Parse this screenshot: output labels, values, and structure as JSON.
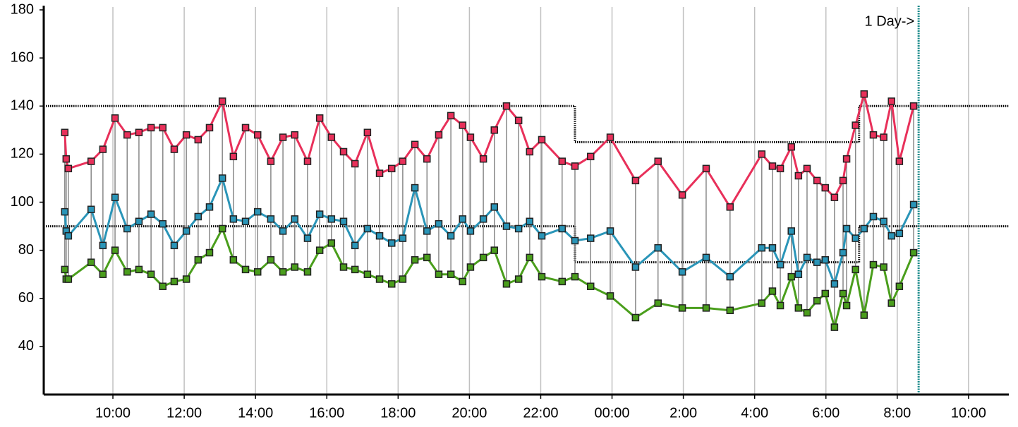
{
  "chart_data": {
    "type": "line",
    "x": [
      8.65,
      8.69,
      8.75,
      9.39,
      9.72,
      10.06,
      10.4,
      10.73,
      11.07,
      11.4,
      11.72,
      12.06,
      12.39,
      12.71,
      13.07,
      13.38,
      13.72,
      14.06,
      14.43,
      14.77,
      15.1,
      15.46,
      15.8,
      16.13,
      16.47,
      16.79,
      17.14,
      17.48,
      17.82,
      18.13,
      18.47,
      18.81,
      19.14,
      19.48,
      19.81,
      20.03,
      20.39,
      20.7,
      21.04,
      21.38,
      21.69,
      22.03,
      22.6,
      22.96,
      23.4,
      23.95,
      24.66,
      25.29,
      25.97,
      26.64,
      27.31,
      28.2,
      28.5,
      28.72,
      29.03,
      29.23,
      29.47,
      29.75,
      29.98,
      30.24,
      30.48,
      30.58,
      30.83,
      31.07,
      31.33,
      31.62,
      31.84,
      32.06,
      32.46
    ],
    "series": [
      {
        "color": "#e8305a",
        "values": [
          129,
          118,
          114,
          117,
          122,
          135,
          128,
          129,
          131,
          131,
          122,
          128,
          126,
          131,
          142,
          119,
          131,
          128,
          117,
          127,
          128,
          117,
          135,
          127,
          121,
          116,
          129,
          112,
          114,
          117,
          124,
          118,
          128,
          136,
          132,
          127,
          118,
          130,
          140,
          134,
          121,
          126,
          117,
          115,
          119,
          127,
          109,
          117,
          103,
          114,
          98,
          120,
          115,
          114,
          123,
          111,
          114,
          109,
          106,
          102,
          109,
          118,
          132,
          145,
          128,
          127,
          142,
          117,
          140
        ]
      },
      {
        "color": "#2a95b8",
        "values": [
          96,
          88,
          86,
          97,
          82,
          102,
          89,
          92,
          95,
          91,
          82,
          88,
          94,
          98,
          110,
          93,
          92,
          96,
          93,
          88,
          93,
          85,
          95,
          93,
          92,
          82,
          89,
          86,
          83,
          85,
          106,
          88,
          91,
          86,
          93,
          88,
          93,
          98,
          90,
          89,
          92,
          86,
          89,
          84,
          85,
          88,
          73,
          81,
          71,
          77,
          69,
          81,
          81,
          74,
          88,
          70,
          77,
          75,
          76,
          66,
          79,
          89,
          85,
          89,
          94,
          92,
          86,
          87,
          99
        ]
      },
      {
        "color": "#4a9e1c",
        "values": [
          72,
          68,
          68,
          75,
          70,
          80,
          71,
          72,
          70,
          65,
          67,
          68,
          76,
          79,
          89,
          76,
          72,
          71,
          76,
          71,
          73,
          71,
          80,
          83,
          73,
          72,
          70,
          68,
          66,
          68,
          76,
          77,
          70,
          70,
          67,
          73,
          77,
          80,
          66,
          68,
          77,
          69,
          67,
          69,
          65,
          61,
          52,
          58,
          56,
          56,
          55,
          58,
          63,
          57,
          69,
          56,
          54,
          59,
          62,
          48,
          62,
          57,
          72,
          53,
          74,
          73,
          58,
          65,
          79
        ]
      }
    ],
    "thresholds": [
      {
        "values": [
          140,
          125,
          140
        ]
      },
      {
        "values": [
          90,
          75,
          90
        ]
      }
    ],
    "threshold_breaks": [
      22.96,
      30.93
    ],
    "marker": {
      "x": 32.6,
      "text": "1 Day->",
      "color": "#1a8a8a"
    },
    "xlim": [
      8.06,
      35.13
    ],
    "ylim": [
      20,
      180
    ],
    "xticks": [
      {
        "value": 10,
        "label": "10:00"
      },
      {
        "value": 12,
        "label": "12:00"
      },
      {
        "value": 14,
        "label": "14:00"
      },
      {
        "value": 16,
        "label": "16:00"
      },
      {
        "value": 18,
        "label": "18:00"
      },
      {
        "value": 20,
        "label": "20:00"
      },
      {
        "value": 22,
        "label": "22:00"
      },
      {
        "value": 24,
        "label": "00:00"
      },
      {
        "value": 26,
        "label": "2:00"
      },
      {
        "value": 28,
        "label": "4:00"
      },
      {
        "value": 30,
        "label": "6:00"
      },
      {
        "value": 32,
        "label": "8:00"
      },
      {
        "value": 34,
        "label": "10:00"
      }
    ],
    "yticks": [
      40,
      60,
      80,
      100,
      120,
      140,
      160,
      180
    ],
    "grid": true
  }
}
